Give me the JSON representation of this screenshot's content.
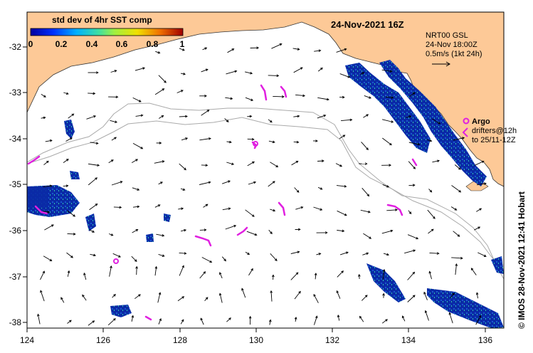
{
  "title": "24-Nov-2021 16Z",
  "colorbar": {
    "label": "std dev of 4hr SST comp",
    "ticks": [
      "0",
      "0.2",
      "0.4",
      "0.6",
      "0.8",
      "1"
    ]
  },
  "info": {
    "line1": "NRT00 GSL",
    "line2": "24-Nov 18:00Z",
    "line3": "0.5m/s (1kt 24h)"
  },
  "argo": {
    "label": "Argo",
    "line1": "drifters@12h",
    "line2": "to 25/11-12Z"
  },
  "credit": "© IMOS 28-Nov-2021 12:41 Hobart",
  "x_ticks": [
    "124",
    "126",
    "128",
    "130",
    "132",
    "134",
    "136"
  ],
  "y_ticks": [
    "-32",
    "-33",
    "-34",
    "-35",
    "-36",
    "-37",
    "-38"
  ],
  "colors": {
    "land": "#fdc997",
    "ocean": "#ffffff",
    "data": "#0a2aa6",
    "argo": "#e020e0",
    "contour": "#aaaaaa"
  }
}
